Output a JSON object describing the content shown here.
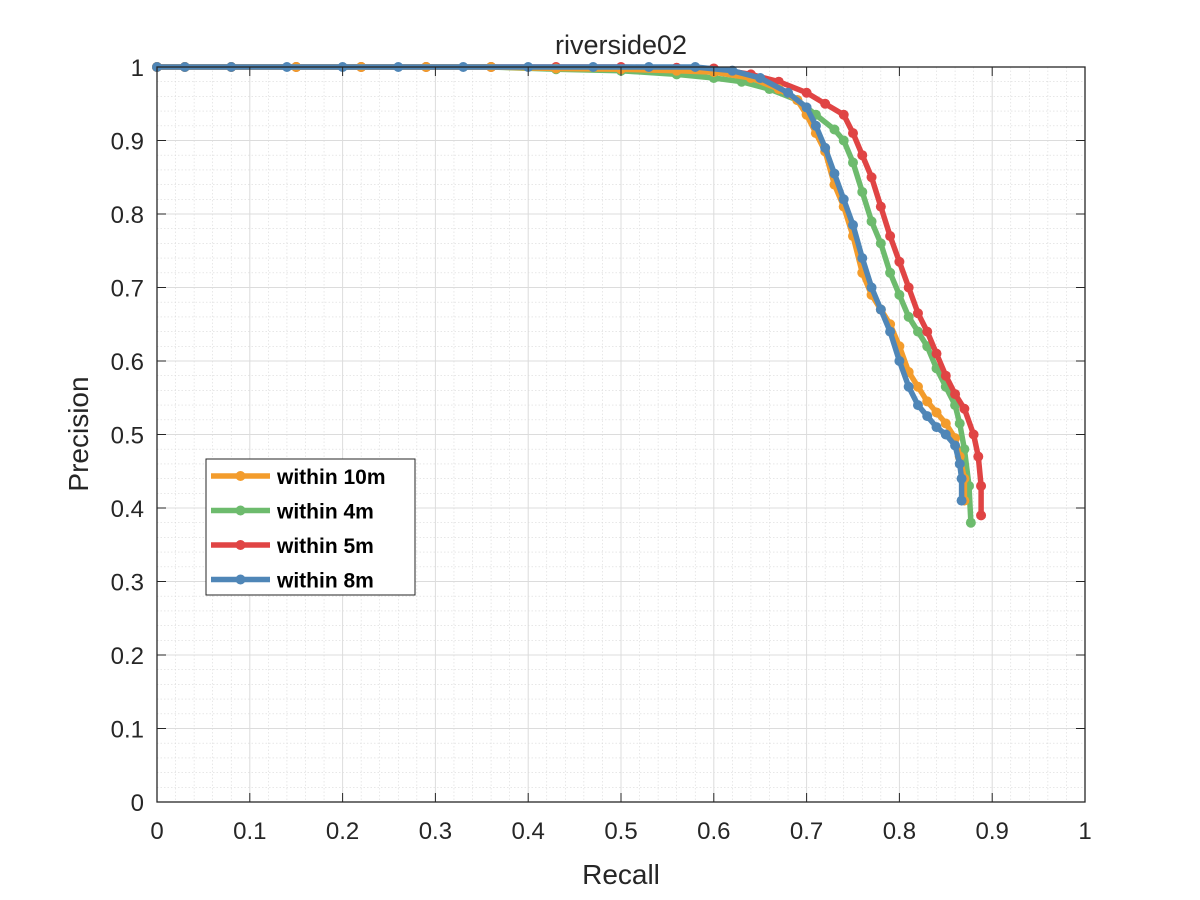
{
  "chart_data": {
    "type": "line",
    "title": "riverside02",
    "xlabel": "Recall",
    "ylabel": "Precision",
    "xlim": [
      0,
      1
    ],
    "ylim": [
      0,
      1
    ],
    "xticks": [
      "0",
      "0.1",
      "0.2",
      "0.3",
      "0.4",
      "0.5",
      "0.6",
      "0.7",
      "0.8",
      "0.9",
      "1"
    ],
    "yticks": [
      "0",
      "0.1",
      "0.2",
      "0.3",
      "0.4",
      "0.5",
      "0.6",
      "0.7",
      "0.8",
      "0.9",
      "1"
    ],
    "grid": true,
    "minor_grid": true,
    "legend_position": "lower-left",
    "series": [
      {
        "name": "within 10m",
        "color": "#f39c2c",
        "x": [
          0.0,
          0.03,
          0.08,
          0.15,
          0.22,
          0.29,
          0.36,
          0.43,
          0.5,
          0.56,
          0.6,
          0.64,
          0.67,
          0.69,
          0.7,
          0.71,
          0.72,
          0.73,
          0.74,
          0.75,
          0.76,
          0.77,
          0.78,
          0.79,
          0.8,
          0.81,
          0.82,
          0.83,
          0.84,
          0.85,
          0.86,
          0.865,
          0.87,
          0.87
        ],
        "y": [
          1.0,
          1.0,
          1.0,
          1.0,
          1.0,
          1.0,
          1.0,
          0.998,
          0.997,
          0.995,
          0.993,
          0.985,
          0.97,
          0.955,
          0.935,
          0.91,
          0.885,
          0.84,
          0.81,
          0.77,
          0.72,
          0.69,
          0.67,
          0.65,
          0.62,
          0.585,
          0.565,
          0.545,
          0.53,
          0.515,
          0.495,
          0.47,
          0.44,
          0.41
        ]
      },
      {
        "name": "within 4m",
        "color": "#6dbb6d",
        "x": [
          0.0,
          0.03,
          0.08,
          0.15,
          0.22,
          0.29,
          0.36,
          0.43,
          0.5,
          0.56,
          0.6,
          0.63,
          0.66,
          0.69,
          0.71,
          0.73,
          0.74,
          0.75,
          0.76,
          0.77,
          0.78,
          0.79,
          0.8,
          0.81,
          0.82,
          0.83,
          0.84,
          0.85,
          0.86,
          0.865,
          0.87,
          0.875,
          0.877
        ],
        "y": [
          1.0,
          1.0,
          1.0,
          1.0,
          1.0,
          1.0,
          1.0,
          0.997,
          0.995,
          0.99,
          0.985,
          0.98,
          0.97,
          0.955,
          0.935,
          0.915,
          0.9,
          0.87,
          0.83,
          0.79,
          0.76,
          0.72,
          0.69,
          0.66,
          0.64,
          0.62,
          0.59,
          0.565,
          0.54,
          0.515,
          0.48,
          0.43,
          0.38
        ]
      },
      {
        "name": "within 5m",
        "color": "#e04444",
        "x": [
          0.0,
          0.03,
          0.08,
          0.15,
          0.22,
          0.29,
          0.36,
          0.43,
          0.5,
          0.56,
          0.6,
          0.64,
          0.67,
          0.7,
          0.72,
          0.74,
          0.75,
          0.76,
          0.77,
          0.78,
          0.79,
          0.8,
          0.81,
          0.82,
          0.83,
          0.84,
          0.85,
          0.86,
          0.87,
          0.88,
          0.885,
          0.888,
          0.888
        ],
        "y": [
          1.0,
          1.0,
          1.0,
          1.0,
          1.0,
          1.0,
          1.0,
          1.0,
          1.0,
          0.999,
          0.998,
          0.99,
          0.98,
          0.965,
          0.95,
          0.935,
          0.91,
          0.88,
          0.85,
          0.81,
          0.77,
          0.735,
          0.7,
          0.665,
          0.64,
          0.61,
          0.58,
          0.555,
          0.535,
          0.5,
          0.47,
          0.43,
          0.39
        ]
      },
      {
        "name": "within 8m",
        "color": "#4f86b7",
        "x": [
          0.0,
          0.03,
          0.08,
          0.14,
          0.2,
          0.26,
          0.33,
          0.4,
          0.47,
          0.53,
          0.58,
          0.62,
          0.65,
          0.68,
          0.7,
          0.71,
          0.72,
          0.73,
          0.74,
          0.75,
          0.76,
          0.77,
          0.78,
          0.79,
          0.8,
          0.81,
          0.82,
          0.83,
          0.84,
          0.85,
          0.86,
          0.865,
          0.867,
          0.867
        ],
        "y": [
          1.0,
          1.0,
          1.0,
          1.0,
          1.0,
          1.0,
          1.0,
          1.0,
          1.0,
          1.0,
          1.0,
          0.995,
          0.985,
          0.965,
          0.945,
          0.92,
          0.89,
          0.855,
          0.82,
          0.785,
          0.74,
          0.7,
          0.67,
          0.64,
          0.6,
          0.565,
          0.54,
          0.525,
          0.51,
          0.5,
          0.485,
          0.46,
          0.44,
          0.41
        ]
      }
    ]
  }
}
